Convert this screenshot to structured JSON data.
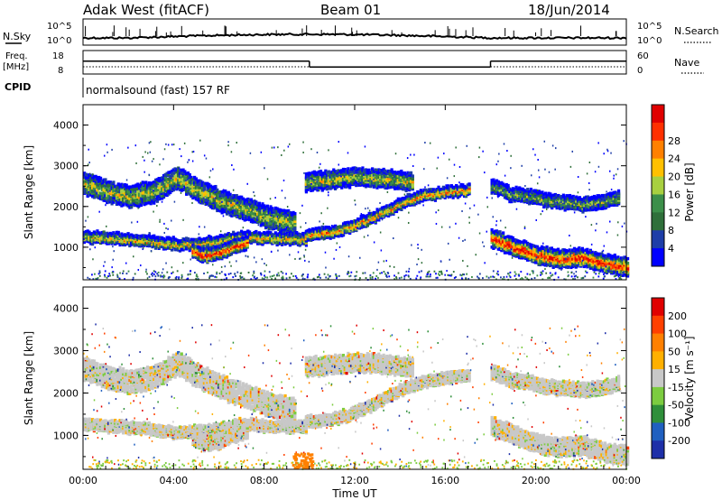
{
  "header": {
    "station": "Adak West (fitACF)",
    "beam": "Beam 01",
    "date": "18/Jun/2014"
  },
  "panels": {
    "nsky": {
      "label": "N.Sky",
      "ticks": [
        "10^5",
        "10^0"
      ],
      "right_ticks": [
        "10^5",
        "10^0"
      ],
      "right_label": "N.Search"
    },
    "freq": {
      "label_line1": "Freq.",
      "label_line2": "[MHz]",
      "ticks": [
        "18",
        "8"
      ],
      "right_ticks": [
        "60",
        "0"
      ],
      "right_label": "Nave"
    },
    "cpid": {
      "label": "CPID",
      "text": "normalsound (fast) 157 RF"
    }
  },
  "chart_data": [
    {
      "type": "heatmap",
      "name": "power",
      "ylabel": "Slant Range [km]",
      "ylim": [
        200,
        4500
      ],
      "y_ticks": [
        1000,
        2000,
        3000,
        4000
      ],
      "xlim": [
        0,
        24
      ],
      "colorbar": {
        "label": "Power [dB]",
        "ticks": [
          "4",
          "8",
          "12",
          "16",
          "20",
          "24",
          "28"
        ],
        "colors": [
          "#0000ff",
          "#1e3ea8",
          "#2f6f3a",
          "#3c8f4a",
          "#a8d040",
          "#ffc000",
          "#ff8000",
          "#ff3000",
          "#e00000"
        ]
      },
      "echo_bands": [
        {
          "t0": 0.0,
          "t1": 9.3,
          "r": [
            2550,
            2350,
            2250,
            2350,
            2700,
            2350,
            2100,
            1900,
            1700,
            1600
          ],
          "w": 250,
          "level": 0.5
        },
        {
          "t0": 9.8,
          "t1": 14.5,
          "r": [
            2600,
            2650,
            2700,
            2700,
            2650,
            2600
          ],
          "w": 200,
          "level": 0.5
        },
        {
          "t0": 0.0,
          "t1": 9.8,
          "r": [
            1250,
            1200,
            1150,
            1050,
            1100,
            1250,
            1200,
            1200
          ],
          "w": 120,
          "level": 0.6
        },
        {
          "t0": 4.8,
          "t1": 7.2,
          "r": [
            900,
            800,
            850,
            1000,
            1100
          ],
          "w": 150,
          "level": 0.9
        },
        {
          "t0": 9.8,
          "t1": 17.0,
          "r": [
            1300,
            1350,
            1500,
            1750,
            2050,
            2250,
            2350,
            2400
          ],
          "w": 120,
          "level": 0.7
        },
        {
          "t0": 18.0,
          "t1": 23.6,
          "r": [
            2500,
            2300,
            2250,
            2150,
            2100,
            2050,
            2100,
            2200
          ],
          "w": 150,
          "level": 0.4
        },
        {
          "t0": 18.0,
          "t1": 24.0,
          "r": [
            1200,
            1000,
            800,
            700,
            750,
            600,
            500
          ],
          "w": 200,
          "level": 0.9
        }
      ],
      "x_ticks": [
        "00:00",
        "04:00",
        "08:00",
        "12:00",
        "16:00",
        "20:00",
        "00:00"
      ]
    },
    {
      "type": "heatmap",
      "name": "velocity",
      "ylabel": "Slant Range [km]",
      "ylim": [
        200,
        4500
      ],
      "y_ticks": [
        1000,
        2000,
        3000,
        4000
      ],
      "xlim": [
        0,
        24
      ],
      "xlabel": "Time UT",
      "x_ticks": [
        "00:00",
        "04:00",
        "08:00",
        "12:00",
        "16:00",
        "20:00",
        "00:00"
      ],
      "colorbar": {
        "label": "Velocity [m s⁻¹]",
        "ticks": [
          "200",
          "100",
          "50",
          "15",
          "-15",
          "-50",
          "-100",
          "-200"
        ],
        "colors": [
          "#1e2fa8",
          "#2060c0",
          "#2f8f3a",
          "#7ccc40",
          "#c8c8c8",
          "#ffb000",
          "#ff8000",
          "#ff4000",
          "#e00000"
        ]
      }
    }
  ],
  "nsky_series_note": "",
  "freq_steps": [
    {
      "t0": 0.0,
      "t1": 10.0,
      "level": 0.55
    },
    {
      "t0": 10.0,
      "t1": 18.0,
      "level": 0.3
    },
    {
      "t0": 18.0,
      "t1": 24.0,
      "level": 0.55
    }
  ]
}
